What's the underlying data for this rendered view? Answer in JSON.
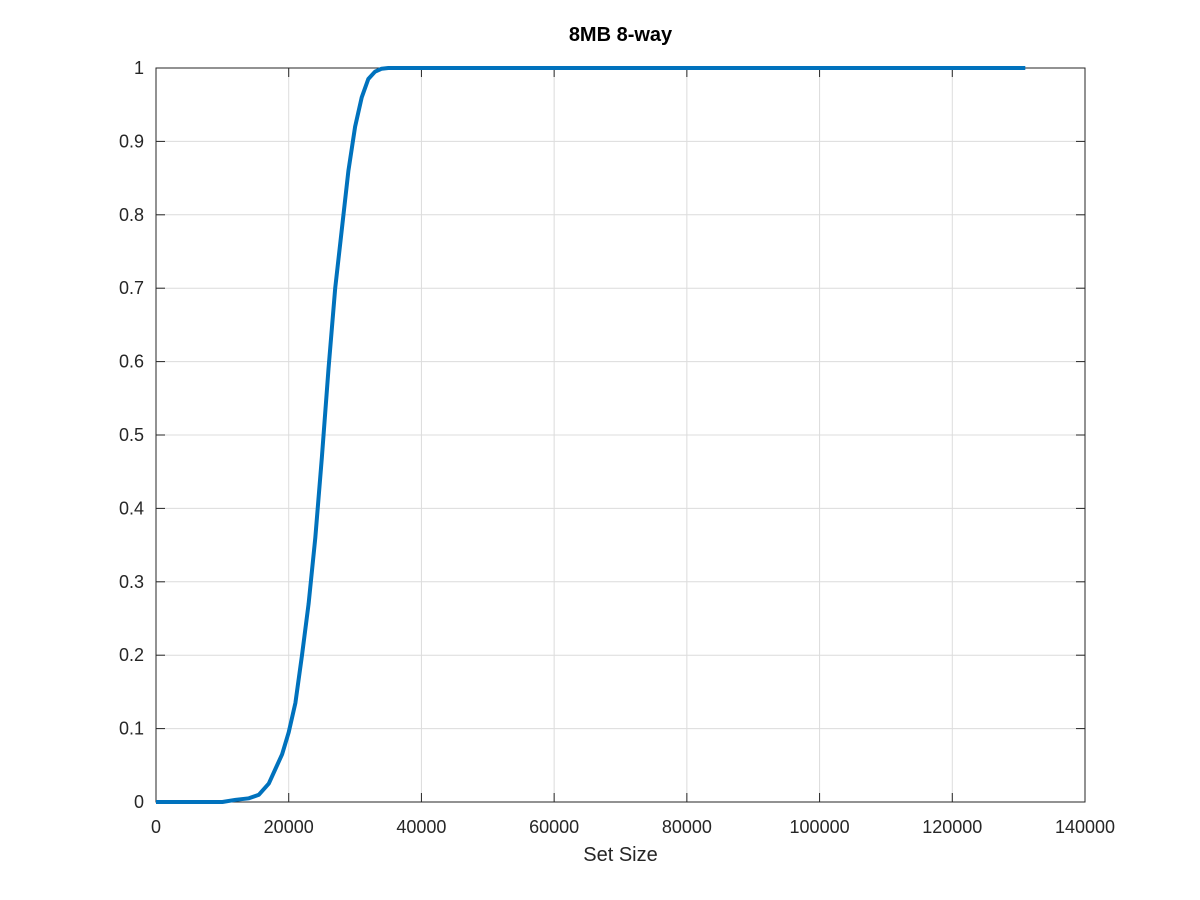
{
  "chart_data": {
    "type": "line",
    "title": "8MB 8-way",
    "xlabel": "Set Size",
    "ylabel": "",
    "xlim": [
      0,
      140000
    ],
    "ylim": [
      0,
      1
    ],
    "x_ticks": [
      "0",
      "20000",
      "40000",
      "60000",
      "80000",
      "100000",
      "120000",
      "140000"
    ],
    "y_ticks": [
      "0",
      "0.1",
      "0.2",
      "0.3",
      "0.4",
      "0.5",
      "0.6",
      "0.7",
      "0.8",
      "0.9",
      "1"
    ],
    "x_tick_values": [
      0,
      20000,
      40000,
      60000,
      80000,
      100000,
      120000,
      140000
    ],
    "y_tick_values": [
      0,
      0.1,
      0.2,
      0.3,
      0.4,
      0.5,
      0.6,
      0.7,
      0.8,
      0.9,
      1
    ],
    "grid": true,
    "series": [
      {
        "color": "#0072bd",
        "x": [
          0,
          5000,
          10000,
          12000,
          14000,
          15500,
          17000,
          18000,
          19000,
          20000,
          21000,
          22000,
          23000,
          24000,
          25000,
          26000,
          27000,
          28000,
          29000,
          30000,
          31000,
          32000,
          33000,
          34000,
          35000,
          36000,
          38000,
          40000,
          50000,
          60000,
          80000,
          100000,
          120000,
          131000
        ],
        "y": [
          0,
          0,
          0,
          0.003,
          0.005,
          0.01,
          0.025,
          0.045,
          0.065,
          0.095,
          0.135,
          0.2,
          0.27,
          0.36,
          0.47,
          0.59,
          0.7,
          0.78,
          0.86,
          0.92,
          0.96,
          0.985,
          0.995,
          0.999,
          1,
          1,
          1,
          1,
          1,
          1,
          1,
          1,
          1,
          1
        ]
      }
    ]
  }
}
